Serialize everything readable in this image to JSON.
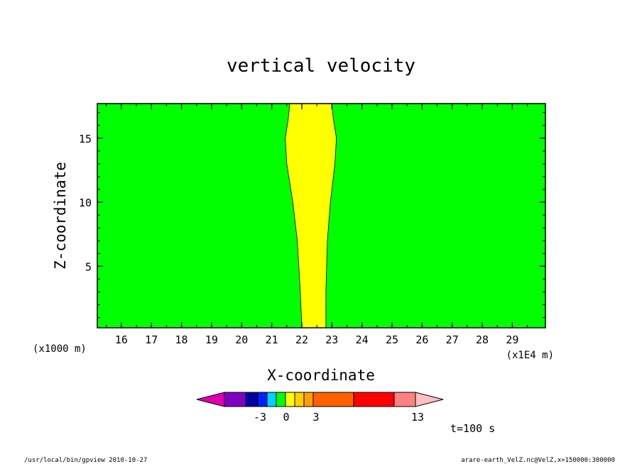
{
  "chart_data": {
    "type": "contour",
    "title": "vertical velocity",
    "xlabel": "X-coordinate",
    "ylabel": "Z-coordinate",
    "x_unit": "(x1E4 m)",
    "y_unit": "(x1000 m)",
    "xlim": [
      15.2,
      30.1
    ],
    "ylim": [
      0.2,
      17.7
    ],
    "x_ticks": [
      16,
      17,
      18,
      19,
      20,
      21,
      22,
      23,
      24,
      25,
      26,
      27,
      28,
      29
    ],
    "y_ticks": [
      5,
      10,
      15
    ],
    "background_color": "#00ff00",
    "updraft_color": "#ffff00",
    "updraft_region": {
      "z": [
        0.2,
        3,
        7,
        10,
        13,
        15,
        16.5,
        17.7
      ],
      "x_left": [
        22.0,
        21.95,
        21.85,
        21.7,
        21.5,
        21.45,
        21.55,
        21.6
      ],
      "x_right": [
        22.8,
        22.8,
        22.85,
        22.95,
        23.1,
        23.15,
        23.05,
        23.0
      ]
    },
    "colorbar": {
      "colors": [
        "#e000b0",
        "#8000c0",
        "#0000a0",
        "#0020ff",
        "#00d0ff",
        "#00ff00",
        "#ffff00",
        "#ffd000",
        "#ffa000",
        "#ff6000",
        "#ff0000",
        "#ff8080",
        "#ffc0c0"
      ],
      "tick_labels": [
        "-3",
        "0",
        "3",
        "13"
      ]
    },
    "time_label": "t=100 s",
    "footer_left": "/usr/local/bin/gpview  2010-10-27",
    "footer_right": "arare-earth_VelZ.nc@VelZ,x=150000:300000"
  }
}
